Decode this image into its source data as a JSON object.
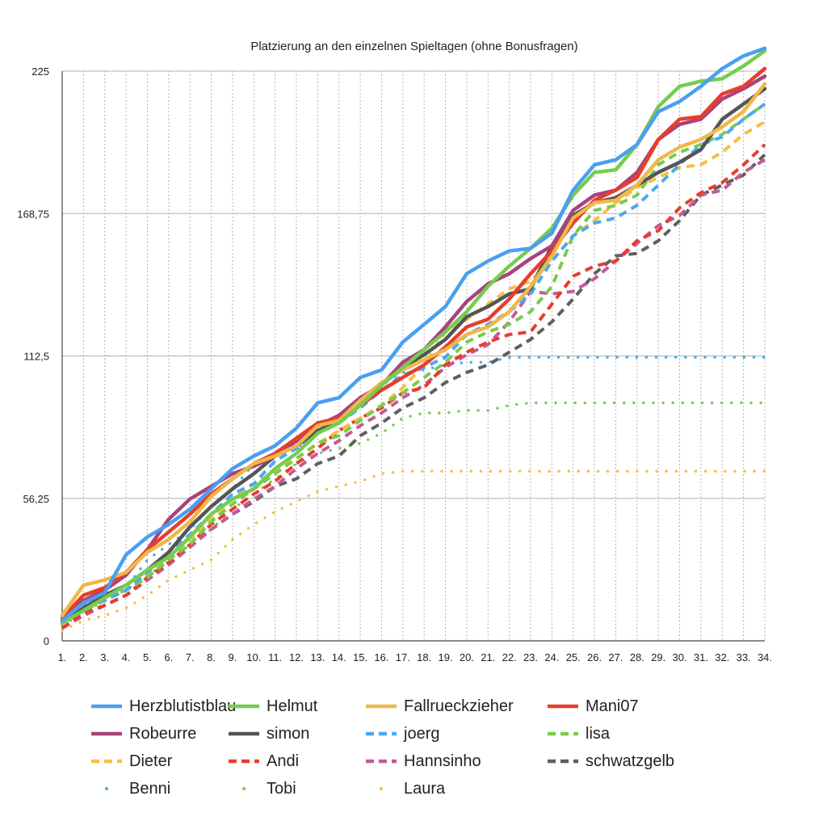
{
  "chart_data": {
    "type": "line",
    "title": "Platzierung an den einzelnen Spieltagen (ohne Bonusfragen)",
    "xlabel": "",
    "ylabel": "",
    "x": [
      "1.",
      "2.",
      "3.",
      "4.",
      "5.",
      "6.",
      "7.",
      "8.",
      "9.",
      "10.",
      "11.",
      "12.",
      "13.",
      "14.",
      "15.",
      "16.",
      "17.",
      "18.",
      "19.",
      "20.",
      "21.",
      "22.",
      "23.",
      "24.",
      "25.",
      "26.",
      "27.",
      "28.",
      "29.",
      "30.",
      "31.",
      "32.",
      "33.",
      "34."
    ],
    "ylim": [
      0,
      225
    ],
    "yticks": [
      "0",
      "56,25",
      "112,5",
      "168,75",
      "225"
    ],
    "grid": true,
    "legend_position": "bottom",
    "series": [
      {
        "name": "Herzblutistblau",
        "color": "#4a9ff0",
        "style": "solid",
        "values": [
          8,
          15,
          19,
          34,
          41,
          46,
          52,
          60,
          68,
          73,
          77,
          84,
          94,
          96,
          104,
          107,
          118,
          125,
          132,
          145,
          150,
          154,
          155,
          161,
          178,
          188,
          190,
          196,
          209,
          213,
          219,
          226,
          231,
          234
        ]
      },
      {
        "name": "Helmut",
        "color": "#76cc4f",
        "style": "solid",
        "values": [
          7,
          12,
          17,
          22,
          28,
          33,
          41,
          50,
          56,
          60,
          68,
          74,
          82,
          86,
          93,
          101,
          108,
          115,
          122,
          130,
          140,
          148,
          155,
          163,
          176,
          185,
          186,
          196,
          211,
          219,
          221,
          222,
          227,
          233
        ]
      },
      {
        "name": "Fallrueckzieher",
        "color": "#eeb84a",
        "style": "solid",
        "values": [
          10,
          22,
          24,
          27,
          35,
          40,
          47,
          57,
          64,
          70,
          73,
          77,
          85,
          87,
          95,
          102,
          107,
          111,
          115,
          121,
          124,
          130,
          140,
          152,
          167,
          173,
          174,
          180,
          190,
          195,
          198,
          203,
          209,
          220
        ]
      },
      {
        "name": "Mani07",
        "color": "#e63e2b",
        "style": "solid",
        "values": [
          9,
          18,
          21,
          27,
          36,
          43,
          50,
          58,
          64,
          70,
          74,
          80,
          86,
          88,
          93,
          99,
          104,
          109,
          116,
          124,
          127,
          135,
          145,
          154,
          165,
          174,
          178,
          183,
          198,
          206,
          207,
          216,
          219,
          226
        ]
      },
      {
        "name": "Robeurre",
        "color": "#a8437c",
        "style": "solid",
        "values": [
          8,
          16,
          20,
          26,
          36,
          48,
          56,
          61,
          66,
          69,
          73,
          79,
          85,
          89,
          96,
          101,
          110,
          115,
          124,
          134,
          141,
          145,
          151,
          156,
          170,
          176,
          178,
          185,
          198,
          204,
          206,
          214,
          218,
          223
        ]
      },
      {
        "name": "simon",
        "color": "#555555",
        "style": "solid",
        "values": [
          7,
          13,
          18,
          22,
          28,
          35,
          45,
          53,
          60,
          66,
          73,
          77,
          83,
          87,
          94,
          101,
          108,
          113,
          119,
          128,
          132,
          137,
          139,
          156,
          168,
          173,
          175,
          180,
          185,
          189,
          194,
          206,
          212,
          218
        ]
      },
      {
        "name": "joerg",
        "color": "#4aaaf0",
        "style": "dashed",
        "values": [
          8,
          13,
          16,
          20,
          27,
          35,
          42,
          50,
          58,
          62,
          71,
          76,
          82,
          86,
          92,
          99,
          105,
          108,
          112,
          121,
          125,
          130,
          137,
          150,
          160,
          165,
          167,
          172,
          180,
          188,
          196,
          199,
          206,
          212
        ]
      },
      {
        "name": "lisa",
        "color": "#76cc4f",
        "style": "dashed",
        "values": [
          7,
          12,
          16,
          20,
          25,
          32,
          38,
          47,
          54,
          60,
          66,
          72,
          78,
          81,
          87,
          93,
          98,
          104,
          110,
          118,
          122,
          125,
          130,
          140,
          160,
          170,
          172,
          176,
          188,
          193,
          196,
          200,
          206,
          212
        ]
      },
      {
        "name": "Dieter",
        "color": "#f5c042",
        "style": "dashed",
        "values": [
          7,
          12,
          16,
          20,
          26,
          33,
          40,
          48,
          56,
          62,
          67,
          72,
          78,
          83,
          88,
          93,
          100,
          109,
          122,
          127,
          133,
          139,
          142,
          150,
          160,
          166,
          173,
          179,
          183,
          187,
          188,
          193,
          200,
          205
        ]
      },
      {
        "name": "Andi",
        "color": "#e63e2b",
        "style": "dashed",
        "values": [
          5,
          11,
          14,
          18,
          25,
          31,
          38,
          46,
          52,
          58,
          63,
          70,
          76,
          83,
          88,
          92,
          98,
          100,
          109,
          114,
          118,
          121,
          122,
          133,
          144,
          148,
          150,
          158,
          162,
          171,
          177,
          181,
          188,
          196
        ]
      },
      {
        "name": "Hannsinho",
        "color": "#c45a98",
        "style": "dashed",
        "values": [
          5,
          10,
          14,
          18,
          24,
          30,
          37,
          44,
          50,
          56,
          61,
          68,
          74,
          79,
          85,
          90,
          96,
          101,
          108,
          113,
          117,
          126,
          138,
          137,
          138,
          143,
          150,
          157,
          164,
          168,
          176,
          178,
          185,
          190
        ]
      },
      {
        "name": "schwatzgelb",
        "color": "#5f5f5f",
        "style": "dashed",
        "values": [
          5,
          10,
          14,
          18,
          24,
          30,
          37,
          44,
          50,
          55,
          61,
          64,
          70,
          73,
          81,
          86,
          92,
          96,
          102,
          106,
          109,
          114,
          119,
          126,
          135,
          145,
          152,
          153,
          158,
          166,
          176,
          180,
          184,
          192
        ]
      },
      {
        "name": "Benni",
        "color": "#4aaaf0",
        "style": "dotted",
        "visible": false,
        "values": [
          7,
          14,
          17,
          21,
          32,
          38,
          44,
          53,
          60,
          70,
          73,
          76,
          83,
          89,
          95,
          101,
          106,
          107,
          109,
          110,
          110,
          112,
          112,
          112,
          112,
          112,
          112,
          112,
          112,
          112,
          112,
          112,
          112,
          112
        ]
      },
      {
        "name": "Tobi",
        "color": "#76cc4f",
        "style": "dotted",
        "visible": false,
        "values": [
          6,
          11,
          16,
          20,
          26,
          31,
          38,
          44,
          52,
          58,
          64,
          70,
          74,
          76,
          78,
          82,
          88,
          90,
          90,
          91,
          91,
          93,
          94,
          94,
          94,
          94,
          94,
          94,
          94,
          94,
          94,
          94,
          94,
          94
        ]
      },
      {
        "name": "Laura",
        "color": "#f5c042",
        "style": "dotted",
        "visible": false,
        "values": [
          4,
          8,
          10,
          13,
          18,
          24,
          28,
          32,
          40,
          46,
          51,
          55,
          59,
          61,
          63,
          66,
          67,
          67,
          67,
          67,
          67,
          67,
          67,
          67,
          67,
          67,
          67,
          67,
          67,
          67,
          67,
          67,
          67,
          67
        ]
      }
    ]
  }
}
